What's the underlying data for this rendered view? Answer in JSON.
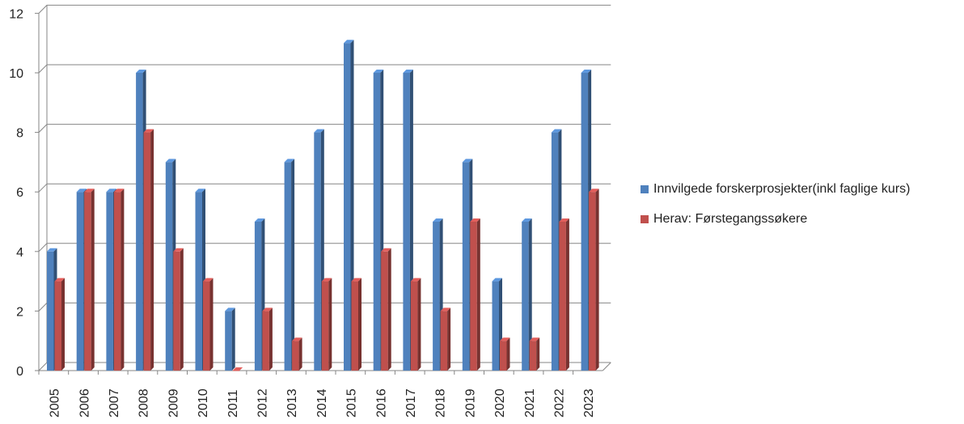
{
  "chart_data": {
    "type": "bar",
    "categories": [
      "2005",
      "2006",
      "2007",
      "2008",
      "2009",
      "2010",
      "2011",
      "2012",
      "2013",
      "2014",
      "2015",
      "2016",
      "2017",
      "2018",
      "2019",
      "2020",
      "2021",
      "2022",
      "2023"
    ],
    "series": [
      {
        "name": "Innvilgede forskerprosjekter(inkl faglige kurs)",
        "color": "#4F81BD",
        "values": [
          4,
          6,
          6,
          10,
          7,
          6,
          2,
          5,
          7,
          8,
          11,
          10,
          10,
          5,
          7,
          3,
          5,
          8,
          10
        ]
      },
      {
        "name": "Herav: Førstegangssøkere",
        "color": "#C0504D",
        "values": [
          3,
          6,
          6,
          8,
          4,
          3,
          0,
          2,
          1,
          3,
          3,
          4,
          3,
          2,
          5,
          1,
          1,
          5,
          6
        ]
      }
    ],
    "y_ticks": [
      "0",
      "2",
      "4",
      "6",
      "8",
      "10",
      "12"
    ],
    "ylim": [
      0,
      12
    ],
    "grid": true,
    "three_d": true,
    "legend_position": "right"
  }
}
